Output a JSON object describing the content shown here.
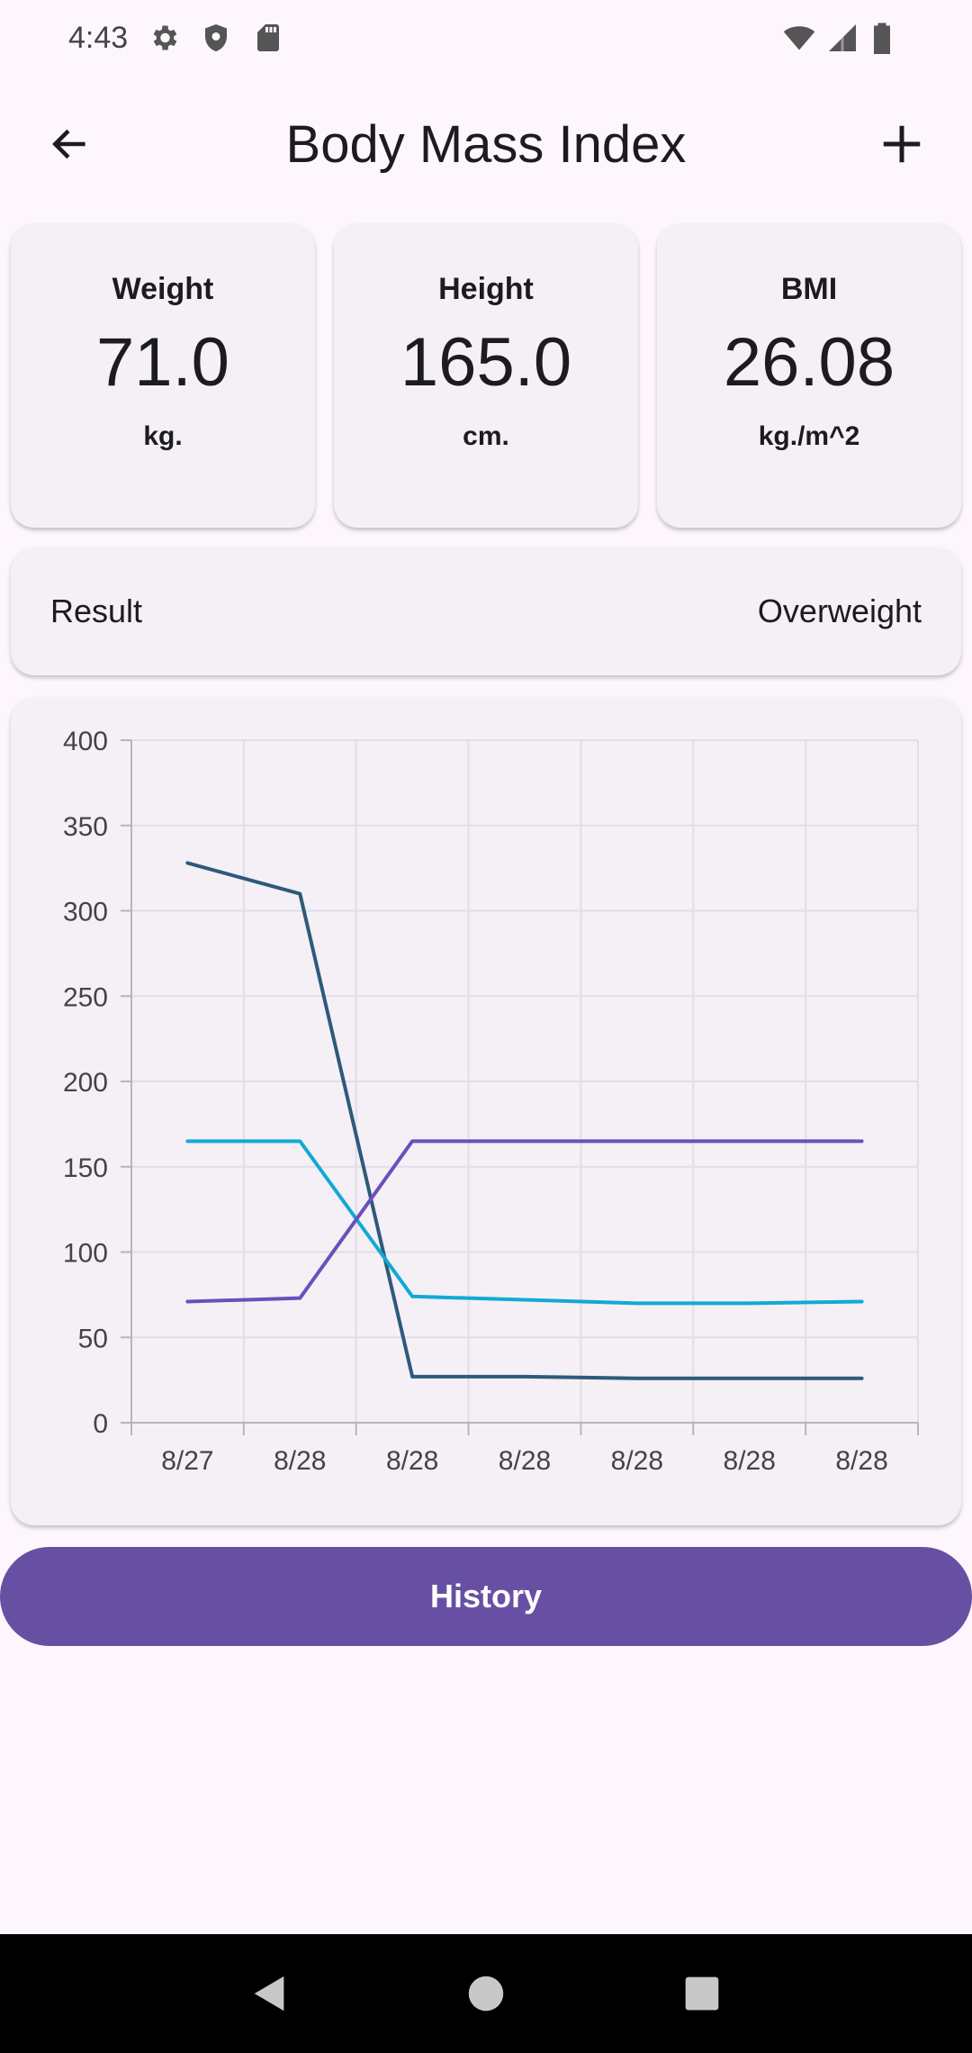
{
  "status_bar": {
    "time": "4:43",
    "icons": [
      "settings-icon",
      "shield-icon",
      "sd-card-icon",
      "wifi-icon",
      "signal-icon",
      "battery-icon"
    ]
  },
  "app_bar": {
    "title": "Body Mass Index",
    "back_icon": "arrow-left-icon",
    "add_icon": "plus-icon"
  },
  "cards": [
    {
      "label": "Weight",
      "value": "71.0",
      "unit": "kg."
    },
    {
      "label": "Height",
      "value": "165.0",
      "unit": "cm."
    },
    {
      "label": "BMI",
      "value": "26.08",
      "unit": "kg./m^2"
    }
  ],
  "result": {
    "label": "Result",
    "value": "Overweight"
  },
  "chart_data": {
    "type": "line",
    "categories": [
      "8/27",
      "8/28",
      "8/28",
      "8/28",
      "8/28",
      "8/28",
      "8/28"
    ],
    "y_ticks": [
      "0",
      "50",
      "100",
      "150",
      "200",
      "250",
      "300",
      "350",
      "400"
    ],
    "ylim": [
      0,
      400
    ],
    "grid": true,
    "series": [
      {
        "color": "#2e5a7a",
        "values": [
          328,
          310,
          27,
          27,
          26,
          26,
          26
        ]
      },
      {
        "color": "#10aad6",
        "values": [
          165,
          165,
          74,
          72,
          70,
          70,
          71
        ]
      },
      {
        "color": "#6b4fbb",
        "values": [
          71,
          73,
          165,
          165,
          165,
          165,
          165
        ]
      }
    ]
  },
  "history_button": {
    "label": "History",
    "color": "#6750a4"
  },
  "nav_bar": {
    "icons": [
      "back-triangle-icon",
      "home-circle-icon",
      "recents-square-icon"
    ]
  }
}
